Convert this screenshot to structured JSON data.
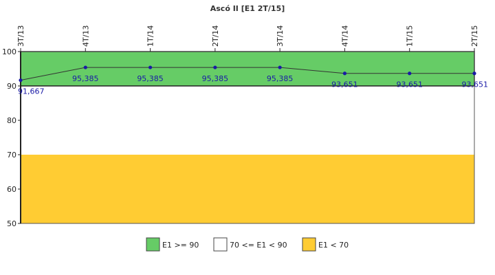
{
  "chart_data": {
    "type": "line",
    "title": "Ascó II [E1 2T/15]",
    "categories": [
      "3T/13",
      "4T/13",
      "1T/14",
      "2T/14",
      "3T/14",
      "4T/14",
      "1T/15",
      "2T/15"
    ],
    "series": [
      {
        "values": [
          91.667,
          95.385,
          95.385,
          95.385,
          95.385,
          93.651,
          93.651,
          93.651
        ],
        "labels": [
          "91,667",
          "95,385",
          "95,385",
          "95,385",
          "95,385",
          "93,651",
          "93,651",
          "93,651"
        ]
      }
    ],
    "ylim": [
      50,
      100
    ],
    "yticks": [
      50,
      60,
      70,
      80,
      90,
      100
    ],
    "bands": [
      {
        "from": 90,
        "to": 100,
        "color": "#66cc66",
        "label": "E1 >= 90"
      },
      {
        "from": 70,
        "to": 90,
        "color": "#ffffff",
        "label": "70 <= E1 < 90"
      },
      {
        "from": 50,
        "to": 70,
        "color": "#ffcc33",
        "label": "E1 < 70"
      }
    ],
    "line_color": "#333333",
    "marker_color": "#1a1aa6",
    "legend_placement": "bottom-center",
    "grid": false
  }
}
